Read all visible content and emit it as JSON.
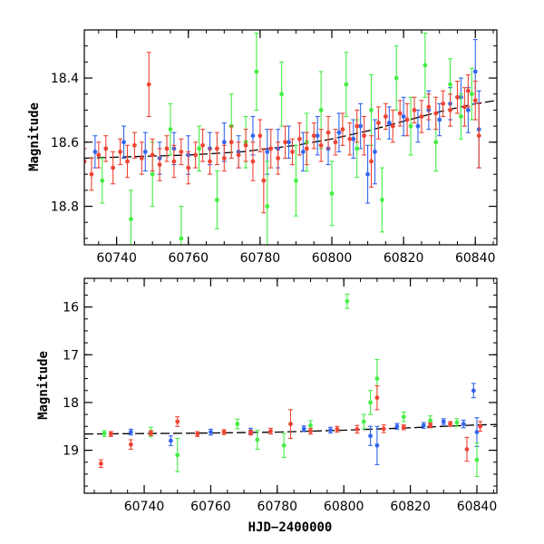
{
  "chart_data": [
    {
      "type": "scatter",
      "title": "",
      "xlabel": "",
      "ylabel": "Magnitude",
      "xlim": [
        60731,
        60846
      ],
      "ylim": [
        18.92,
        18.25
      ],
      "y_inverted": true,
      "grid": false,
      "x_ticks": [
        60740,
        60760,
        60780,
        60800,
        60820,
        60840
      ],
      "y_ticks": [
        18.4,
        18.6,
        18.8
      ],
      "model_curve": {
        "color": "#000000",
        "x": [
          60731,
          60745,
          60760,
          60775,
          60790,
          60800,
          60810,
          60820,
          60830,
          60840,
          60846
        ],
        "y": [
          18.65,
          18.645,
          18.64,
          18.63,
          18.61,
          18.59,
          18.565,
          18.535,
          18.505,
          18.48,
          18.47
        ]
      },
      "series": [
        {
          "color": "#3366ee",
          "points": [
            {
              "x": 60734,
              "y": 18.63,
              "e": 0.05
            },
            {
              "x": 60742,
              "y": 18.6,
              "e": 0.05
            },
            {
              "x": 60748,
              "y": 18.63,
              "e": 0.06
            },
            {
              "x": 60752,
              "y": 18.65,
              "e": 0.05
            },
            {
              "x": 60756,
              "y": 18.62,
              "e": 0.05
            },
            {
              "x": 60760,
              "y": 18.64,
              "e": 0.06
            },
            {
              "x": 60766,
              "y": 18.62,
              "e": 0.05
            },
            {
              "x": 60770,
              "y": 18.6,
              "e": 0.06
            },
            {
              "x": 60774,
              "y": 18.63,
              "e": 0.05
            },
            {
              "x": 60778,
              "y": 18.58,
              "e": 0.06
            },
            {
              "x": 60782,
              "y": 18.63,
              "e": 0.07
            },
            {
              "x": 60785,
              "y": 18.62,
              "e": 0.06
            },
            {
              "x": 60788,
              "y": 18.6,
              "e": 0.05
            },
            {
              "x": 60792,
              "y": 18.63,
              "e": 0.06
            },
            {
              "x": 60796,
              "y": 18.58,
              "e": 0.06
            },
            {
              "x": 60799,
              "y": 18.62,
              "e": 0.05
            },
            {
              "x": 60802,
              "y": 18.57,
              "e": 0.06
            },
            {
              "x": 60806,
              "y": 18.59,
              "e": 0.06
            },
            {
              "x": 60808,
              "y": 18.55,
              "e": 0.07
            },
            {
              "x": 60810,
              "y": 18.7,
              "e": 0.09
            },
            {
              "x": 60812,
              "y": 18.63,
              "e": 0.1
            },
            {
              "x": 60816,
              "y": 18.54,
              "e": 0.05
            },
            {
              "x": 60820,
              "y": 18.52,
              "e": 0.06
            },
            {
              "x": 60824,
              "y": 18.55,
              "e": 0.05
            },
            {
              "x": 60827,
              "y": 18.5,
              "e": 0.06
            },
            {
              "x": 60830,
              "y": 18.53,
              "e": 0.05
            },
            {
              "x": 60833,
              "y": 18.48,
              "e": 0.05
            },
            {
              "x": 60836,
              "y": 18.46,
              "e": 0.06
            },
            {
              "x": 60838,
              "y": 18.5,
              "e": 0.07
            },
            {
              "x": 60840,
              "y": 18.38,
              "e": 0.1
            },
            {
              "x": 60841,
              "y": 18.56,
              "e": 0.12
            }
          ]
        },
        {
          "color": "#44ee44",
          "points": [
            {
              "x": 60736,
              "y": 18.72,
              "e": 0.07
            },
            {
              "x": 60744,
              "y": 18.84,
              "e": 0.09
            },
            {
              "x": 60750,
              "y": 18.7,
              "e": 0.1
            },
            {
              "x": 60755,
              "y": 18.56,
              "e": 0.08
            },
            {
              "x": 60758,
              "y": 18.9,
              "e": 0.1
            },
            {
              "x": 60763,
              "y": 18.62,
              "e": 0.07
            },
            {
              "x": 60768,
              "y": 18.78,
              "e": 0.09
            },
            {
              "x": 60772,
              "y": 18.55,
              "e": 0.1
            },
            {
              "x": 60776,
              "y": 18.6,
              "e": 0.08
            },
            {
              "x": 60779,
              "y": 18.38,
              "e": 0.12
            },
            {
              "x": 60782,
              "y": 18.8,
              "e": 0.14
            },
            {
              "x": 60786,
              "y": 18.45,
              "e": 0.1
            },
            {
              "x": 60790,
              "y": 18.72,
              "e": 0.11
            },
            {
              "x": 60793,
              "y": 18.6,
              "e": 0.09
            },
            {
              "x": 60797,
              "y": 18.5,
              "e": 0.12
            },
            {
              "x": 60800,
              "y": 18.76,
              "e": 0.1
            },
            {
              "x": 60804,
              "y": 18.42,
              "e": 0.1
            },
            {
              "x": 60807,
              "y": 18.62,
              "e": 0.09
            },
            {
              "x": 60811,
              "y": 18.5,
              "e": 0.11
            },
            {
              "x": 60814,
              "y": 18.78,
              "e": 0.1
            },
            {
              "x": 60818,
              "y": 18.4,
              "e": 0.1
            },
            {
              "x": 60822,
              "y": 18.55,
              "e": 0.09
            },
            {
              "x": 60826,
              "y": 18.36,
              "e": 0.1
            },
            {
              "x": 60829,
              "y": 18.6,
              "e": 0.09
            },
            {
              "x": 60833,
              "y": 18.42,
              "e": 0.08
            },
            {
              "x": 60836,
              "y": 18.52,
              "e": 0.07
            },
            {
              "x": 60839,
              "y": 18.45,
              "e": 0.08
            }
          ]
        },
        {
          "color": "#ee4433",
          "points": [
            {
              "x": 60731,
              "y": 18.66,
              "e": 0.04
            },
            {
              "x": 60733,
              "y": 18.7,
              "e": 0.05
            },
            {
              "x": 60735,
              "y": 18.64,
              "e": 0.04
            },
            {
              "x": 60737,
              "y": 18.62,
              "e": 0.04
            },
            {
              "x": 60739,
              "y": 18.68,
              "e": 0.05
            },
            {
              "x": 60741,
              "y": 18.63,
              "e": 0.04
            },
            {
              "x": 60743,
              "y": 18.66,
              "e": 0.05
            },
            {
              "x": 60745,
              "y": 18.61,
              "e": 0.04
            },
            {
              "x": 60747,
              "y": 18.65,
              "e": 0.05
            },
            {
              "x": 60749,
              "y": 18.42,
              "e": 0.1
            },
            {
              "x": 60750,
              "y": 18.64,
              "e": 0.05
            },
            {
              "x": 60752,
              "y": 18.67,
              "e": 0.05
            },
            {
              "x": 60754,
              "y": 18.62,
              "e": 0.04
            },
            {
              "x": 60756,
              "y": 18.66,
              "e": 0.05
            },
            {
              "x": 60758,
              "y": 18.63,
              "e": 0.04
            },
            {
              "x": 60760,
              "y": 18.68,
              "e": 0.05
            },
            {
              "x": 60762,
              "y": 18.64,
              "e": 0.04
            },
            {
              "x": 60764,
              "y": 18.61,
              "e": 0.05
            },
            {
              "x": 60766,
              "y": 18.66,
              "e": 0.04
            },
            {
              "x": 60768,
              "y": 18.62,
              "e": 0.05
            },
            {
              "x": 60770,
              "y": 18.65,
              "e": 0.04
            },
            {
              "x": 60772,
              "y": 18.6,
              "e": 0.05
            },
            {
              "x": 60774,
              "y": 18.64,
              "e": 0.04
            },
            {
              "x": 60776,
              "y": 18.61,
              "e": 0.05
            },
            {
              "x": 60778,
              "y": 18.66,
              "e": 0.06
            },
            {
              "x": 60780,
              "y": 18.58,
              "e": 0.05
            },
            {
              "x": 60781,
              "y": 18.72,
              "e": 0.1
            },
            {
              "x": 60783,
              "y": 18.62,
              "e": 0.06
            },
            {
              "x": 60785,
              "y": 18.65,
              "e": 0.05
            },
            {
              "x": 60787,
              "y": 18.6,
              "e": 0.05
            },
            {
              "x": 60789,
              "y": 18.63,
              "e": 0.04
            },
            {
              "x": 60791,
              "y": 18.59,
              "e": 0.05
            },
            {
              "x": 60793,
              "y": 18.62,
              "e": 0.05
            },
            {
              "x": 60795,
              "y": 18.58,
              "e": 0.04
            },
            {
              "x": 60797,
              "y": 18.61,
              "e": 0.05
            },
            {
              "x": 60799,
              "y": 18.57,
              "e": 0.05
            },
            {
              "x": 60801,
              "y": 18.6,
              "e": 0.04
            },
            {
              "x": 60803,
              "y": 18.56,
              "e": 0.05
            },
            {
              "x": 60805,
              "y": 18.59,
              "e": 0.05
            },
            {
              "x": 60807,
              "y": 18.55,
              "e": 0.05
            },
            {
              "x": 60809,
              "y": 18.58,
              "e": 0.06
            },
            {
              "x": 60811,
              "y": 18.66,
              "e": 0.08
            },
            {
              "x": 60813,
              "y": 18.54,
              "e": 0.05
            },
            {
              "x": 60815,
              "y": 18.52,
              "e": 0.04
            },
            {
              "x": 60817,
              "y": 18.55,
              "e": 0.05
            },
            {
              "x": 60819,
              "y": 18.51,
              "e": 0.04
            },
            {
              "x": 60821,
              "y": 18.53,
              "e": 0.05
            },
            {
              "x": 60823,
              "y": 18.5,
              "e": 0.04
            },
            {
              "x": 60825,
              "y": 18.52,
              "e": 0.05
            },
            {
              "x": 60827,
              "y": 18.49,
              "e": 0.04
            },
            {
              "x": 60829,
              "y": 18.51,
              "e": 0.05
            },
            {
              "x": 60831,
              "y": 18.48,
              "e": 0.04
            },
            {
              "x": 60833,
              "y": 18.5,
              "e": 0.05
            },
            {
              "x": 60835,
              "y": 18.46,
              "e": 0.05
            },
            {
              "x": 60837,
              "y": 18.49,
              "e": 0.06
            },
            {
              "x": 60838,
              "y": 18.44,
              "e": 0.05
            },
            {
              "x": 60840,
              "y": 18.47,
              "e": 0.06
            },
            {
              "x": 60841,
              "y": 18.58,
              "e": 0.1
            }
          ]
        }
      ]
    },
    {
      "type": "scatter",
      "title": "",
      "xlabel": "HJD−2400000",
      "ylabel": "Magnitude",
      "xlim": [
        60722,
        60846
      ],
      "ylim": [
        19.9,
        15.4
      ],
      "y_inverted": true,
      "grid": false,
      "x_ticks": [
        60740,
        60760,
        60780,
        60800,
        60820,
        60840
      ],
      "y_ticks": [
        16,
        17,
        18,
        19
      ],
      "model_curve": {
        "color": "#000000",
        "x": [
          60722,
          60740,
          60760,
          60780,
          60800,
          60820,
          60840,
          60846
        ],
        "y": [
          18.66,
          18.65,
          18.64,
          18.62,
          18.58,
          18.53,
          18.47,
          18.46
        ]
      },
      "series": [
        {
          "color": "#3366ee",
          "points": [
            {
              "x": 60736,
              "y": 18.62,
              "e": 0.06
            },
            {
              "x": 60748,
              "y": 18.8,
              "e": 0.1
            },
            {
              "x": 60760,
              "y": 18.62,
              "e": 0.06
            },
            {
              "x": 60772,
              "y": 18.6,
              "e": 0.06
            },
            {
              "x": 60788,
              "y": 18.55,
              "e": 0.06
            },
            {
              "x": 60796,
              "y": 18.58,
              "e": 0.06
            },
            {
              "x": 60808,
              "y": 18.7,
              "e": 0.2
            },
            {
              "x": 60810,
              "y": 18.9,
              "e": 0.4
            },
            {
              "x": 60816,
              "y": 18.5,
              "e": 0.06
            },
            {
              "x": 60824,
              "y": 18.48,
              "e": 0.06
            },
            {
              "x": 60830,
              "y": 18.4,
              "e": 0.06
            },
            {
              "x": 60836,
              "y": 18.45,
              "e": 0.08
            },
            {
              "x": 60839,
              "y": 17.75,
              "e": 0.15
            },
            {
              "x": 60840,
              "y": 18.62,
              "e": 0.3
            }
          ]
        },
        {
          "color": "#44ee44",
          "points": [
            {
              "x": 60728,
              "y": 18.65,
              "e": 0.06
            },
            {
              "x": 60742,
              "y": 18.62,
              "e": 0.1
            },
            {
              "x": 60750,
              "y": 19.1,
              "e": 0.35
            },
            {
              "x": 60768,
              "y": 18.45,
              "e": 0.1
            },
            {
              "x": 60774,
              "y": 18.78,
              "e": 0.2
            },
            {
              "x": 60782,
              "y": 18.9,
              "e": 0.25
            },
            {
              "x": 60790,
              "y": 18.48,
              "e": 0.1
            },
            {
              "x": 60801,
              "y": 15.88,
              "e": 0.15
            },
            {
              "x": 60806,
              "y": 18.4,
              "e": 0.15
            },
            {
              "x": 60808,
              "y": 18.0,
              "e": 0.25
            },
            {
              "x": 60810,
              "y": 17.5,
              "e": 0.4
            },
            {
              "x": 60818,
              "y": 18.3,
              "e": 0.1
            },
            {
              "x": 60826,
              "y": 18.38,
              "e": 0.1
            },
            {
              "x": 60834,
              "y": 18.42,
              "e": 0.08
            },
            {
              "x": 60840,
              "y": 19.2,
              "e": 0.35
            }
          ]
        },
        {
          "color": "#ee4433",
          "points": [
            {
              "x": 60727,
              "y": 19.28,
              "e": 0.08
            },
            {
              "x": 60730,
              "y": 18.66,
              "e": 0.05
            },
            {
              "x": 60736,
              "y": 18.88,
              "e": 0.1
            },
            {
              "x": 60742,
              "y": 18.64,
              "e": 0.05
            },
            {
              "x": 60750,
              "y": 18.4,
              "e": 0.1
            },
            {
              "x": 60756,
              "y": 18.66,
              "e": 0.05
            },
            {
              "x": 60764,
              "y": 18.62,
              "e": 0.05
            },
            {
              "x": 60772,
              "y": 18.63,
              "e": 0.05
            },
            {
              "x": 60778,
              "y": 18.6,
              "e": 0.06
            },
            {
              "x": 60784,
              "y": 18.45,
              "e": 0.3
            },
            {
              "x": 60790,
              "y": 18.6,
              "e": 0.06
            },
            {
              "x": 60798,
              "y": 18.56,
              "e": 0.06
            },
            {
              "x": 60804,
              "y": 18.56,
              "e": 0.08
            },
            {
              "x": 60810,
              "y": 17.9,
              "e": 0.25
            },
            {
              "x": 60812,
              "y": 18.55,
              "e": 0.08
            },
            {
              "x": 60818,
              "y": 18.52,
              "e": 0.05
            },
            {
              "x": 60826,
              "y": 18.48,
              "e": 0.05
            },
            {
              "x": 60832,
              "y": 18.45,
              "e": 0.05
            },
            {
              "x": 60837,
              "y": 18.98,
              "e": 0.25
            },
            {
              "x": 60841,
              "y": 18.5,
              "e": 0.1
            }
          ]
        }
      ]
    }
  ]
}
